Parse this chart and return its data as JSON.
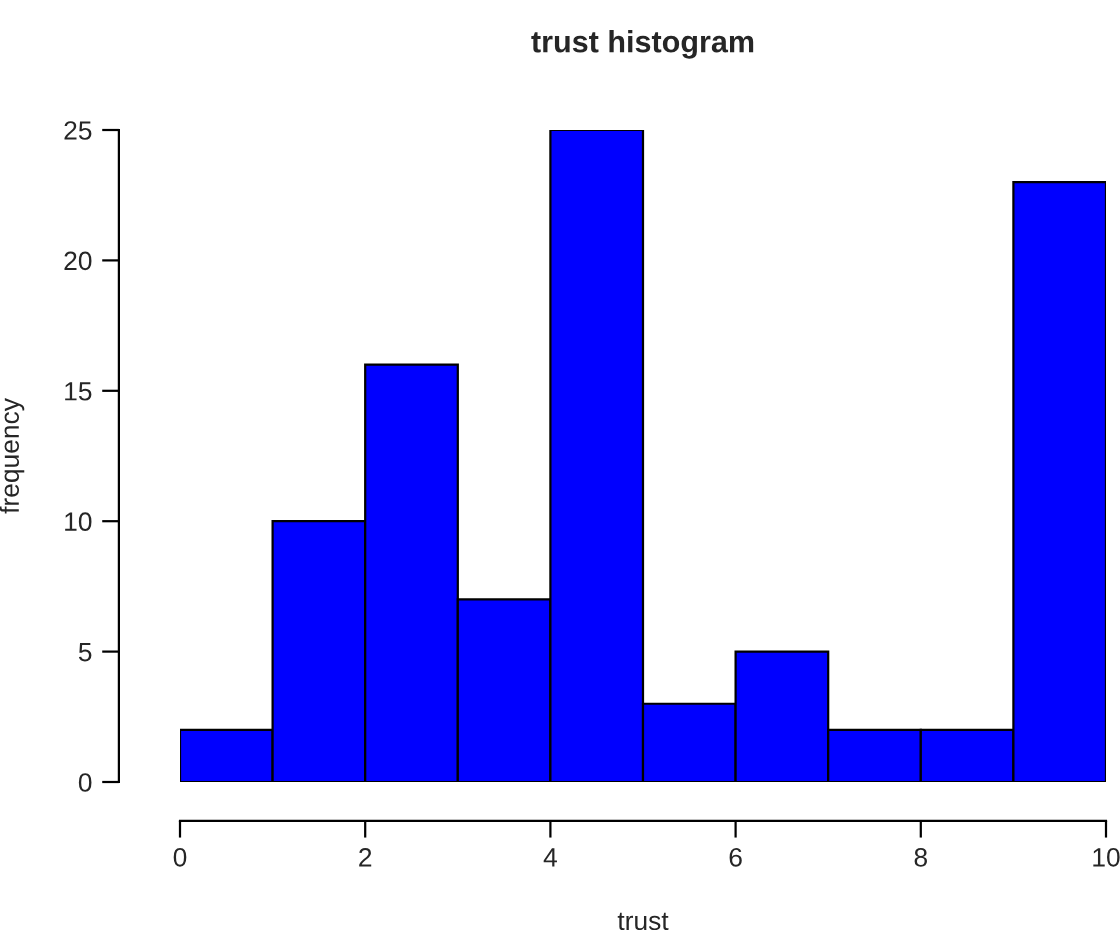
{
  "chart_data": {
    "type": "histogram",
    "title": "trust histogram",
    "xlabel": "trust",
    "ylabel": "frequency",
    "bins": [
      0,
      1,
      2,
      3,
      4,
      5,
      6,
      7,
      8,
      9,
      10
    ],
    "values": [
      2,
      10,
      16,
      7,
      25,
      3,
      5,
      2,
      2,
      23
    ],
    "color": "#0000ff",
    "xlim": [
      0,
      10
    ],
    "xticks": [
      0,
      2,
      4,
      6,
      8,
      10
    ],
    "ylim": [
      0,
      25
    ],
    "yticks": [
      0,
      5,
      10,
      15,
      20,
      25
    ],
    "grid": false
  }
}
